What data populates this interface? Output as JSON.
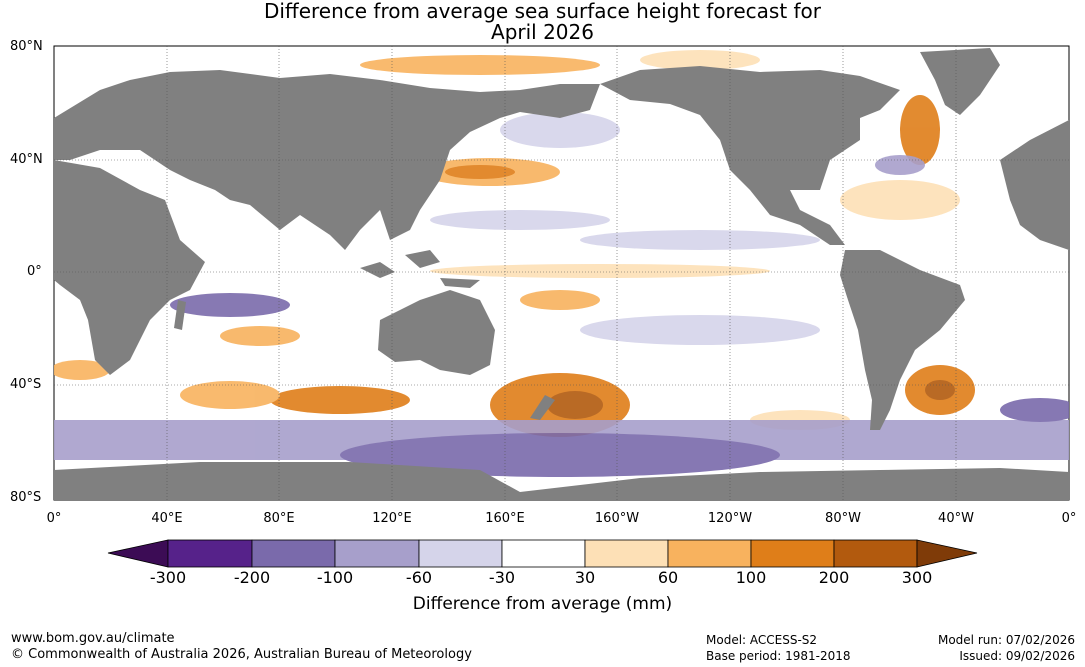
{
  "title_line1": "Difference from average sea surface height forecast for",
  "title_line2": "April 2026",
  "map": {
    "ocean_color": "#ffffff",
    "land_color": "#808080",
    "grid_color": "#555555"
  },
  "lat_labels": [
    "80°N",
    "40°N",
    "0°",
    "40°S",
    "80°S"
  ],
  "lon_labels": [
    "0°",
    "40°E",
    "80°E",
    "120°E",
    "160°E",
    "160°W",
    "120°W",
    "80°W",
    "40°W",
    "0°"
  ],
  "colorbar": {
    "label": "Difference from average (mm)",
    "ticks": [
      "-300",
      "-200",
      "-100",
      "-60",
      "-30",
      "30",
      "60",
      "100",
      "200",
      "300"
    ],
    "colors": [
      "#3c0c55",
      "#56228a",
      "#7a6aab",
      "#a79fcb",
      "#d5d4ea",
      "#ffffff",
      "#fde0b6",
      "#f8b25e",
      "#df7e19",
      "#b25a0e",
      "#7f3b08"
    ]
  },
  "footer": {
    "website": "www.bom.gov.au/climate",
    "copyright": "© Commonwealth of Australia 2026, Australian Bureau of Meteorology",
    "model": "Model: ACCESS-S2",
    "base_period": "Base period: 1981-2018",
    "model_run": "Model run: 07/02/2026",
    "issued": "Issued: 09/02/2026"
  }
}
